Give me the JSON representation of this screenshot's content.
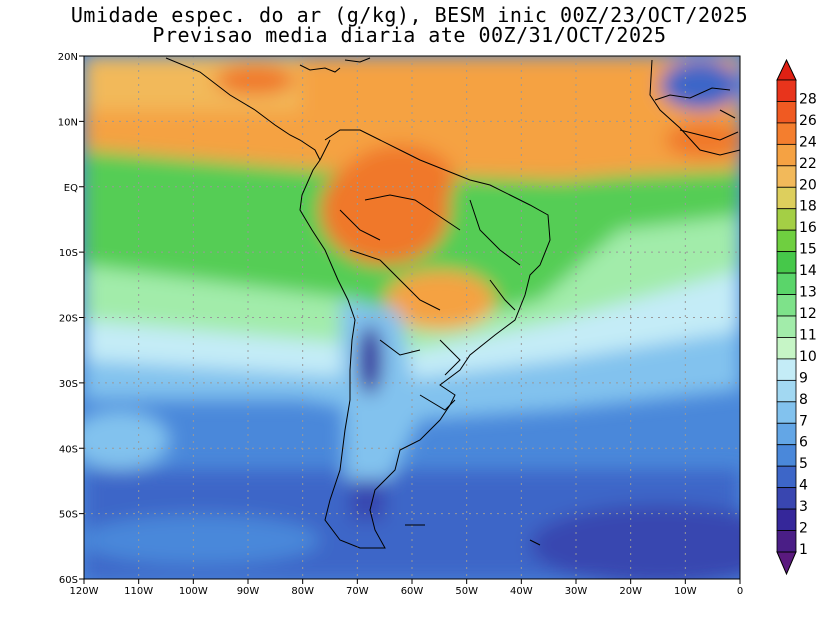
{
  "title_line1": "Umidade espec. do ar (g/kg), BESM inic 00Z/23/OCT/2025",
  "title_line2": "Previsao media diaria ate 00Z/31/OCT/2025",
  "lat_labels": [
    "20N",
    "10N",
    "EQ",
    "10S",
    "20S",
    "30S",
    "40S",
    "50S",
    "60S"
  ],
  "lon_labels": [
    "120W",
    "110W",
    "100W",
    "90W",
    "80W",
    "70W",
    "60W",
    "50W",
    "40W",
    "30W",
    "20W",
    "10W",
    "0"
  ],
  "colorbar": {
    "labels": [
      "28",
      "26",
      "24",
      "22",
      "20",
      "18",
      "16",
      "15",
      "14",
      "13",
      "12",
      "11",
      "10",
      "9",
      "8",
      "7",
      "6",
      "5",
      "4",
      "3",
      "2",
      "1"
    ],
    "colors": [
      "#e8341c",
      "#f05a22",
      "#f47e2e",
      "#f5a243",
      "#f2b95a",
      "#ddcf5d",
      "#a4cf45",
      "#6fcf40",
      "#46c84a",
      "#5ad56a",
      "#7ee28a",
      "#a2ecaa",
      "#c6f5c6",
      "#c4ecf7",
      "#a2d8f2",
      "#82c2ee",
      "#63a6e6",
      "#4a88da",
      "#3d66c8",
      "#3946b0",
      "#35279a",
      "#4a1e86"
    ],
    "top_arrow_color": "#df2013",
    "bottom_arrow_color": "#5a1a7e"
  },
  "field_colors": {
    "hot": "#f0782c",
    "warm": "#f5a243",
    "tropical": "#f2b95a",
    "green": "#55cd55",
    "lightgreen": "#a2ecaa",
    "paleblue": "#c4ecf7",
    "blue": "#82c2ee",
    "midblue": "#4a88da",
    "darkblue": "#3946b0",
    "indigo": "#35279a"
  }
}
